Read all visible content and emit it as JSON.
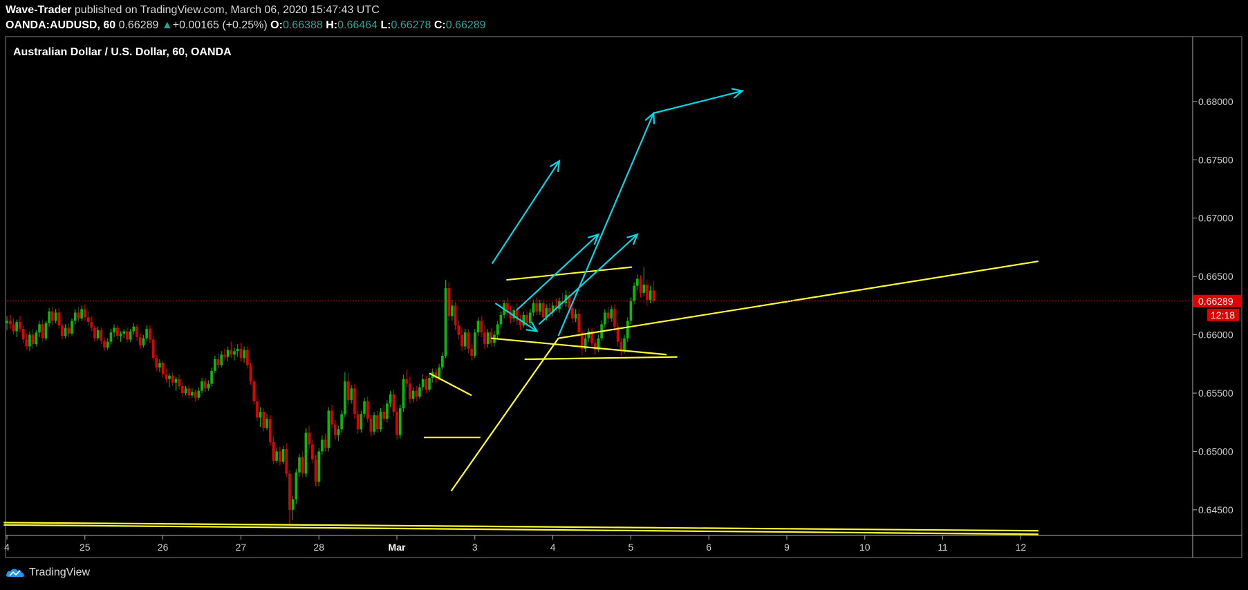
{
  "header": {
    "author": "Wave-Trader",
    "published_text": " published on TradingView.com, March 06, 2020 15:47:43 UTC",
    "symbol": "OANDA:AUDUSD, 60",
    "last": "0.66289",
    "change": "+0.00165 (+0.25%)",
    "o_label": "O:",
    "o_value": "0.66388",
    "h_label": "H:",
    "h_value": "0.66464",
    "l_label": "L:",
    "l_value": "0.66278",
    "c_label": "C:",
    "c_value": "0.66289"
  },
  "pane_title": "Australian Dollar / U.S. Dollar, 60, OANDA",
  "footer": {
    "brand": "TradingView"
  },
  "colors": {
    "background": "#000000",
    "up": "#00c000",
    "down": "#e00000",
    "trendline": "#ffff33",
    "arrow": "#00d8e8",
    "price_line": "#e00000",
    "price_label_bg": "#e00000",
    "axis": "#b0b0b0"
  },
  "chart_data": {
    "type": "candlestick",
    "symbol": "AUDUSD",
    "timeframe": "60",
    "ylim": [
      0.6428,
      0.6855
    ],
    "y_ticks": [
      "0.68000",
      "0.67500",
      "0.67000",
      "0.66500",
      "0.66000",
      "0.65500",
      "0.65000",
      "0.64500"
    ],
    "x_ticks": [
      "4",
      "25",
      "26",
      "27",
      "28",
      "Mar",
      "3",
      "4",
      "5",
      "6",
      "9",
      "10",
      "11",
      "12"
    ],
    "x_tick_index": [
      0,
      24,
      48,
      72,
      96,
      120,
      144,
      168,
      192,
      216,
      240,
      264,
      288,
      312
    ],
    "current_price": "0.66289",
    "countdown": "12:18",
    "candles_ohlc": [
      [
        0.661,
        0.6616,
        0.6604,
        0.6612
      ],
      [
        0.6612,
        0.6617,
        0.6605,
        0.6609
      ],
      [
        0.6609,
        0.6614,
        0.66,
        0.6603
      ],
      [
        0.6603,
        0.6613,
        0.6598,
        0.6611
      ],
      [
        0.6611,
        0.6616,
        0.6602,
        0.6605
      ],
      [
        0.6605,
        0.6608,
        0.6593,
        0.6596
      ],
      [
        0.6596,
        0.6601,
        0.6587,
        0.659
      ],
      [
        0.659,
        0.6603,
        0.6586,
        0.66
      ],
      [
        0.66,
        0.6605,
        0.6588,
        0.6592
      ],
      [
        0.6592,
        0.6604,
        0.659,
        0.6602
      ],
      [
        0.6602,
        0.6612,
        0.6598,
        0.6609
      ],
      [
        0.6609,
        0.6613,
        0.6594,
        0.6597
      ],
      [
        0.6597,
        0.6612,
        0.6595,
        0.661
      ],
      [
        0.661,
        0.6623,
        0.6607,
        0.662
      ],
      [
        0.662,
        0.6624,
        0.6608,
        0.6612
      ],
      [
        0.6612,
        0.6622,
        0.661,
        0.6619
      ],
      [
        0.6619,
        0.6623,
        0.6605,
        0.6608
      ],
      [
        0.6608,
        0.661,
        0.6596,
        0.6599
      ],
      [
        0.6599,
        0.6609,
        0.6597,
        0.6606
      ],
      [
        0.6606,
        0.661,
        0.6598,
        0.6601
      ],
      [
        0.6601,
        0.6614,
        0.6599,
        0.6612
      ],
      [
        0.6612,
        0.6622,
        0.6609,
        0.6619
      ],
      [
        0.6619,
        0.6624,
        0.6611,
        0.6614
      ],
      [
        0.6614,
        0.6625,
        0.6612,
        0.6622
      ],
      [
        0.6622,
        0.6626,
        0.6612,
        0.6615
      ],
      [
        0.6615,
        0.662,
        0.6608,
        0.6611
      ],
      [
        0.6611,
        0.6616,
        0.6603,
        0.6606
      ],
      [
        0.6606,
        0.6608,
        0.6594,
        0.6597
      ],
      [
        0.6597,
        0.6607,
        0.6595,
        0.6604
      ],
      [
        0.6604,
        0.6606,
        0.6592,
        0.6595
      ],
      [
        0.6595,
        0.6598,
        0.6586,
        0.6589
      ],
      [
        0.6589,
        0.6597,
        0.6587,
        0.6594
      ],
      [
        0.6594,
        0.6605,
        0.6592,
        0.6602
      ],
      [
        0.6602,
        0.6609,
        0.6598,
        0.6606
      ],
      [
        0.6606,
        0.6608,
        0.6596,
        0.6599
      ],
      [
        0.6599,
        0.6603,
        0.6594,
        0.6601
      ],
      [
        0.6601,
        0.6605,
        0.6597,
        0.6603
      ],
      [
        0.6603,
        0.6606,
        0.6593,
        0.6596
      ],
      [
        0.6596,
        0.6605,
        0.6594,
        0.6603
      ],
      [
        0.6603,
        0.661,
        0.66,
        0.6607
      ],
      [
        0.6607,
        0.6609,
        0.6595,
        0.6598
      ],
      [
        0.6598,
        0.6601,
        0.6588,
        0.6591
      ],
      [
        0.6591,
        0.66,
        0.6589,
        0.6597
      ],
      [
        0.6597,
        0.6608,
        0.6595,
        0.6605
      ],
      [
        0.6605,
        0.6608,
        0.6593,
        0.6596
      ],
      [
        0.6596,
        0.66,
        0.6577,
        0.658
      ],
      [
        0.658,
        0.6583,
        0.6569,
        0.6572
      ],
      [
        0.6572,
        0.6579,
        0.6568,
        0.6576
      ],
      [
        0.6576,
        0.6578,
        0.6563,
        0.6566
      ],
      [
        0.6566,
        0.6571,
        0.6559,
        0.6562
      ],
      [
        0.6562,
        0.6567,
        0.6555,
        0.6565
      ],
      [
        0.6565,
        0.6568,
        0.6556,
        0.6559
      ],
      [
        0.6559,
        0.6564,
        0.6552,
        0.6562
      ],
      [
        0.6562,
        0.6566,
        0.6553,
        0.6556
      ],
      [
        0.6556,
        0.6559,
        0.6547,
        0.655
      ],
      [
        0.655,
        0.6556,
        0.6548,
        0.6554
      ],
      [
        0.6554,
        0.6557,
        0.6545,
        0.6548
      ],
      [
        0.6548,
        0.6554,
        0.6546,
        0.6551
      ],
      [
        0.6551,
        0.6553,
        0.6543,
        0.6546
      ],
      [
        0.6546,
        0.6555,
        0.6544,
        0.6552
      ],
      [
        0.6552,
        0.6563,
        0.655,
        0.656
      ],
      [
        0.656,
        0.6563,
        0.6551,
        0.6554
      ],
      [
        0.6554,
        0.6561,
        0.6552,
        0.6558
      ],
      [
        0.6558,
        0.6572,
        0.6556,
        0.6569
      ],
      [
        0.6569,
        0.6582,
        0.6567,
        0.6579
      ],
      [
        0.6579,
        0.6584,
        0.6571,
        0.6574
      ],
      [
        0.6574,
        0.6586,
        0.6572,
        0.6583
      ],
      [
        0.6583,
        0.6588,
        0.6578,
        0.6581
      ],
      [
        0.6581,
        0.659,
        0.6577,
        0.6587
      ],
      [
        0.6587,
        0.6594,
        0.658,
        0.6583
      ],
      [
        0.6583,
        0.6589,
        0.6578,
        0.6586
      ],
      [
        0.6586,
        0.6592,
        0.6581,
        0.6588
      ],
      [
        0.6588,
        0.6593,
        0.6577,
        0.658
      ],
      [
        0.658,
        0.659,
        0.6576,
        0.6587
      ],
      [
        0.6587,
        0.659,
        0.6571,
        0.6574
      ],
      [
        0.6574,
        0.6576,
        0.6557,
        0.656
      ],
      [
        0.656,
        0.6562,
        0.654,
        0.6543
      ],
      [
        0.6543,
        0.6548,
        0.6526,
        0.6529
      ],
      [
        0.6529,
        0.6538,
        0.6521,
        0.6534
      ],
      [
        0.6534,
        0.6537,
        0.6517,
        0.652
      ],
      [
        0.652,
        0.6532,
        0.6518,
        0.6528
      ],
      [
        0.6528,
        0.6531,
        0.6505,
        0.6508
      ],
      [
        0.6508,
        0.6513,
        0.6489,
        0.6492
      ],
      [
        0.6492,
        0.6503,
        0.649,
        0.65
      ],
      [
        0.65,
        0.6504,
        0.6488,
        0.6491
      ],
      [
        0.6491,
        0.6505,
        0.6489,
        0.6502
      ],
      [
        0.6502,
        0.6507,
        0.6478,
        0.6481
      ],
      [
        0.6481,
        0.6484,
        0.6437,
        0.645
      ],
      [
        0.645,
        0.6462,
        0.6441,
        0.6459
      ],
      [
        0.6459,
        0.6485,
        0.6455,
        0.6482
      ],
      [
        0.6482,
        0.6498,
        0.6478,
        0.6495
      ],
      [
        0.6495,
        0.65,
        0.6478,
        0.6481
      ],
      [
        0.6481,
        0.652,
        0.6478,
        0.6516
      ],
      [
        0.6516,
        0.6522,
        0.6502,
        0.6506
      ],
      [
        0.6506,
        0.651,
        0.649,
        0.6493
      ],
      [
        0.6493,
        0.6497,
        0.647,
        0.6474
      ],
      [
        0.6474,
        0.6503,
        0.647,
        0.65
      ],
      [
        0.65,
        0.6514,
        0.6497,
        0.651
      ],
      [
        0.651,
        0.6515,
        0.65,
        0.6503
      ],
      [
        0.6503,
        0.6538,
        0.65,
        0.6535
      ],
      [
        0.6535,
        0.654,
        0.652,
        0.6523
      ],
      [
        0.6523,
        0.6527,
        0.651,
        0.6514
      ],
      [
        0.6514,
        0.6522,
        0.6509,
        0.6519
      ],
      [
        0.6519,
        0.6535,
        0.6516,
        0.6532
      ],
      [
        0.6532,
        0.6568,
        0.6529,
        0.656
      ],
      [
        0.656,
        0.6567,
        0.654,
        0.6544
      ],
      [
        0.6544,
        0.6557,
        0.6541,
        0.6554
      ],
      [
        0.6554,
        0.6558,
        0.6528,
        0.6532
      ],
      [
        0.6532,
        0.6535,
        0.6515,
        0.6519
      ],
      [
        0.6519,
        0.6535,
        0.6516,
        0.6532
      ],
      [
        0.6532,
        0.6546,
        0.6529,
        0.6543
      ],
      [
        0.6543,
        0.6547,
        0.6525,
        0.6528
      ],
      [
        0.6528,
        0.6531,
        0.6513,
        0.6517
      ],
      [
        0.6517,
        0.6534,
        0.6514,
        0.6531
      ],
      [
        0.6531,
        0.6535,
        0.6516,
        0.6519
      ],
      [
        0.6519,
        0.6537,
        0.6517,
        0.6534
      ],
      [
        0.6534,
        0.654,
        0.6525,
        0.6528
      ],
      [
        0.6528,
        0.6544,
        0.6525,
        0.6541
      ],
      [
        0.6541,
        0.6552,
        0.6538,
        0.6549
      ],
      [
        0.6549,
        0.6553,
        0.653,
        0.6534
      ],
      [
        0.6534,
        0.6537,
        0.651,
        0.6514
      ],
      [
        0.6514,
        0.654,
        0.6511,
        0.6537
      ],
      [
        0.6537,
        0.6566,
        0.6534,
        0.6562
      ],
      [
        0.6562,
        0.657,
        0.6555,
        0.6558
      ],
      [
        0.6558,
        0.6564,
        0.6541,
        0.6545
      ],
      [
        0.6545,
        0.6555,
        0.6542,
        0.6552
      ],
      [
        0.6552,
        0.6556,
        0.6543,
        0.6547
      ],
      [
        0.6547,
        0.6558,
        0.6545,
        0.6555
      ],
      [
        0.6555,
        0.6566,
        0.6552,
        0.6562
      ],
      [
        0.6562,
        0.6565,
        0.655,
        0.6553
      ],
      [
        0.6553,
        0.6566,
        0.6551,
        0.6563
      ],
      [
        0.6563,
        0.6571,
        0.6559,
        0.6568
      ],
      [
        0.6568,
        0.6571,
        0.6559,
        0.6563
      ],
      [
        0.6563,
        0.6575,
        0.6561,
        0.6572
      ],
      [
        0.6572,
        0.6585,
        0.657,
        0.6582
      ],
      [
        0.6582,
        0.6647,
        0.658,
        0.664
      ],
      [
        0.664,
        0.6645,
        0.6612,
        0.6616
      ],
      [
        0.6616,
        0.663,
        0.6612,
        0.6625
      ],
      [
        0.6625,
        0.6628,
        0.6604,
        0.6608
      ],
      [
        0.6608,
        0.6612,
        0.6596,
        0.66
      ],
      [
        0.66,
        0.6606,
        0.6586,
        0.659
      ],
      [
        0.659,
        0.6605,
        0.6587,
        0.6602
      ],
      [
        0.6602,
        0.6605,
        0.6584,
        0.6588
      ],
      [
        0.6588,
        0.6592,
        0.6578,
        0.6582
      ],
      [
        0.6582,
        0.6605,
        0.658,
        0.6602
      ],
      [
        0.6602,
        0.6615,
        0.6599,
        0.6612
      ],
      [
        0.6612,
        0.6616,
        0.6598,
        0.6602
      ],
      [
        0.6602,
        0.6608,
        0.6588,
        0.6592
      ],
      [
        0.6592,
        0.6605,
        0.6589,
        0.6602
      ],
      [
        0.6602,
        0.6606,
        0.659,
        0.6593
      ],
      [
        0.6593,
        0.6603,
        0.659,
        0.66
      ],
      [
        0.66,
        0.6612,
        0.6597,
        0.6609
      ],
      [
        0.6609,
        0.662,
        0.6606,
        0.6617
      ],
      [
        0.6617,
        0.663,
        0.6614,
        0.6627
      ],
      [
        0.6627,
        0.6632,
        0.6616,
        0.662
      ],
      [
        0.662,
        0.6625,
        0.661,
        0.6614
      ],
      [
        0.6614,
        0.6624,
        0.6611,
        0.6621
      ],
      [
        0.6621,
        0.6627,
        0.6608,
        0.6612
      ],
      [
        0.6612,
        0.6617,
        0.6604,
        0.6608
      ],
      [
        0.6608,
        0.662,
        0.6606,
        0.6617
      ],
      [
        0.6617,
        0.662,
        0.6606,
        0.661
      ],
      [
        0.661,
        0.6622,
        0.6608,
        0.6619
      ],
      [
        0.6619,
        0.663,
        0.6616,
        0.6627
      ],
      [
        0.6627,
        0.6632,
        0.6617,
        0.662
      ],
      [
        0.662,
        0.663,
        0.6617,
        0.6627
      ],
      [
        0.6627,
        0.663,
        0.6612,
        0.6615
      ],
      [
        0.6615,
        0.6626,
        0.6612,
        0.6623
      ],
      [
        0.6623,
        0.6627,
        0.6615,
        0.6619
      ],
      [
        0.6619,
        0.6628,
        0.6616,
        0.6625
      ],
      [
        0.6625,
        0.6631,
        0.662,
        0.6622
      ],
      [
        0.6622,
        0.6632,
        0.6619,
        0.6629
      ],
      [
        0.6629,
        0.6636,
        0.6624,
        0.6627
      ],
      [
        0.6627,
        0.6638,
        0.6624,
        0.6634
      ],
      [
        0.6634,
        0.6637,
        0.662,
        0.6623
      ],
      [
        0.6623,
        0.6626,
        0.661,
        0.6614
      ],
      [
        0.6614,
        0.6622,
        0.6611,
        0.6618
      ],
      [
        0.6618,
        0.6622,
        0.6598,
        0.6602
      ],
      [
        0.6602,
        0.6605,
        0.6583,
        0.6588
      ],
      [
        0.6588,
        0.66,
        0.6585,
        0.6597
      ],
      [
        0.6597,
        0.6606,
        0.6594,
        0.6603
      ],
      [
        0.6603,
        0.6606,
        0.659,
        0.6593
      ],
      [
        0.6593,
        0.6596,
        0.6583,
        0.6587
      ],
      [
        0.6587,
        0.66,
        0.6585,
        0.6597
      ],
      [
        0.6597,
        0.6612,
        0.6595,
        0.6609
      ],
      [
        0.6609,
        0.6622,
        0.6606,
        0.6619
      ],
      [
        0.6619,
        0.6624,
        0.661,
        0.6614
      ],
      [
        0.6614,
        0.6625,
        0.6611,
        0.6622
      ],
      [
        0.6622,
        0.6626,
        0.6603,
        0.6607
      ],
      [
        0.6607,
        0.661,
        0.659,
        0.6594
      ],
      [
        0.6594,
        0.6597,
        0.6582,
        0.6586
      ],
      [
        0.6586,
        0.66,
        0.6584,
        0.6597
      ],
      [
        0.6597,
        0.6615,
        0.6594,
        0.6612
      ],
      [
        0.6612,
        0.6632,
        0.6609,
        0.6629
      ],
      [
        0.6629,
        0.6645,
        0.6626,
        0.6642
      ],
      [
        0.6642,
        0.6652,
        0.6638,
        0.6648
      ],
      [
        0.6648,
        0.6651,
        0.6632,
        0.6636
      ],
      [
        0.6636,
        0.6658,
        0.6633,
        0.6643
      ],
      [
        0.6643,
        0.6647,
        0.6625,
        0.663
      ],
      [
        0.663,
        0.6642,
        0.6627,
        0.6638
      ],
      [
        0.6638,
        0.6646,
        0.6627,
        0.6629
      ]
    ],
    "drawings": {
      "trendlines": [
        {
          "from": [
            136.7,
            0.6466
          ],
          "to": [
            169.7,
            0.6597
          ]
        },
        {
          "from": [
            169.7,
            0.6597
          ],
          "to": [
            317.4,
            0.6663
          ]
        },
        {
          "from": [
            -1.0,
            0.6439
          ],
          "to": [
            317.4,
            0.6432
          ]
        },
        {
          "from": [
            -1.0,
            0.6437
          ],
          "to": [
            317.4,
            0.6429
          ]
        },
        {
          "from": [
            149.0,
            0.6597
          ],
          "to": [
            203.0,
            0.6583
          ]
        },
        {
          "from": [
            153.7,
            0.6647
          ],
          "to": [
            192.3,
            0.6658
          ]
        },
        {
          "from": [
            159.3,
            0.6579
          ],
          "to": [
            206.3,
            0.6581
          ]
        },
        {
          "from": [
            130.0,
            0.6567
          ],
          "to": [
            143.0,
            0.6548
          ]
        },
        {
          "from": [
            128.3,
            0.6512
          ],
          "to": [
            145.7,
            0.6512
          ]
        }
      ],
      "arrows": [
        {
          "from": [
            150.3,
            0.6627
          ],
          "to": [
            163.1,
            0.6603
          ]
        },
        {
          "from": [
            156.8,
            0.6621
          ],
          "to": [
            182.0,
            0.6686
          ]
        },
        {
          "from": [
            163.7,
            0.6609
          ],
          "to": [
            194.0,
            0.6686
          ]
        },
        {
          "from": [
            149.3,
            0.6661
          ],
          "to": [
            170.0,
            0.6749
          ]
        },
        {
          "from": [
            169.7,
            0.6599
          ],
          "to": [
            199.0,
            0.679
          ]
        },
        {
          "from": [
            199.0,
            0.679
          ],
          "to": [
            226.3,
            0.6809
          ]
        }
      ]
    }
  }
}
